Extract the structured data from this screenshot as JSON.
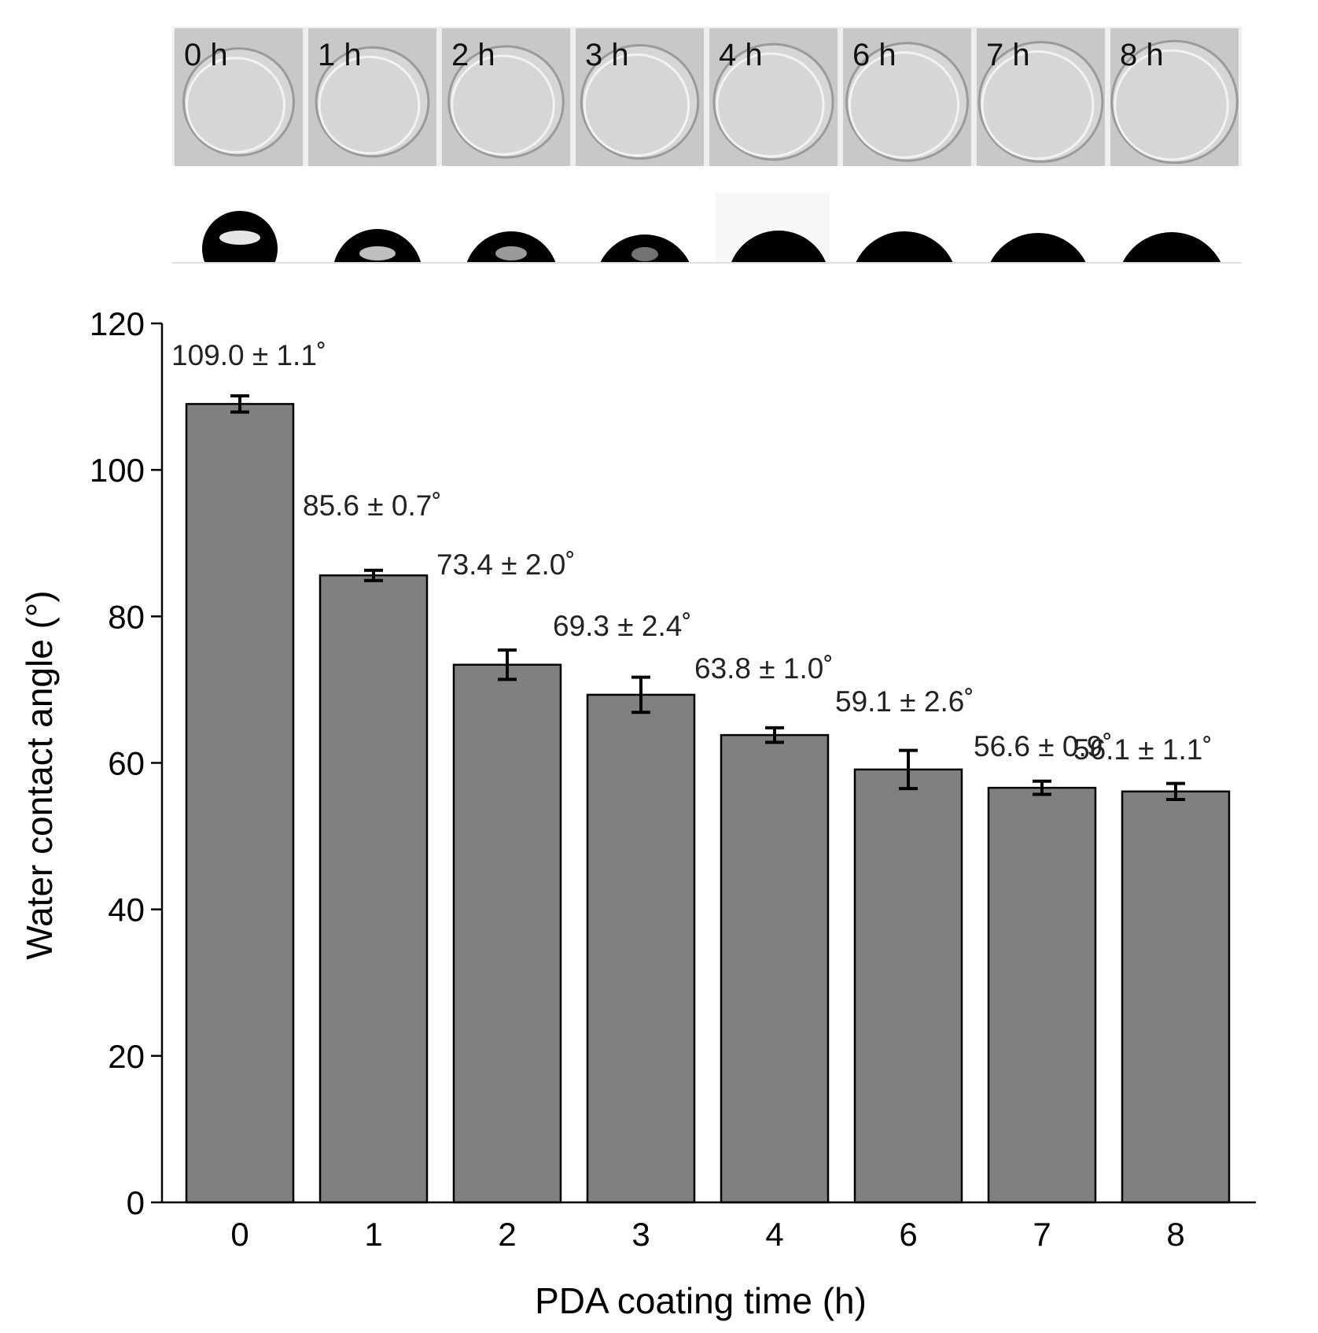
{
  "photo_strip": {
    "labels": [
      "0 h",
      "1 h",
      "2 h",
      "3 h",
      "4 h",
      "6 h",
      "7 h",
      "8 h"
    ]
  },
  "chart_data": {
    "type": "bar",
    "xlabel": "PDA coating time (h)",
    "ylabel": "Water contact angle (°)",
    "ylim": [
      0,
      120
    ],
    "yticks": [
      0,
      20,
      40,
      60,
      80,
      100,
      120
    ],
    "categories": [
      "0",
      "1",
      "2",
      "3",
      "4",
      "6",
      "7",
      "8"
    ],
    "values": [
      109.0,
      85.6,
      73.4,
      69.3,
      63.8,
      59.1,
      56.6,
      56.1
    ],
    "errors": [
      1.1,
      0.7,
      2.0,
      2.4,
      1.0,
      2.6,
      0.9,
      1.1
    ],
    "data_labels": [
      "109.0 ± 1.1˚",
      "85.6 ± 0.7˚",
      "73.4 ± 2.0˚",
      "69.3 ± 2.4˚",
      "63.8 ± 1.0˚",
      "59.1 ±  2.6˚",
      "56.6 ± 0.9˚",
      "56.1 ± 1.1˚"
    ],
    "bar_color": "#808080",
    "grid": false
  }
}
